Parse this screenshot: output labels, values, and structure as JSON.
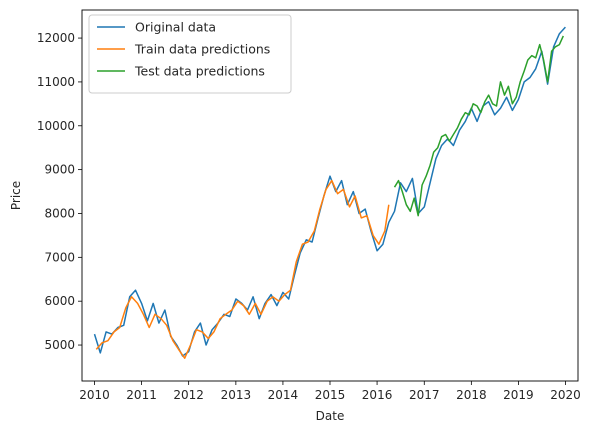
{
  "chart_data": {
    "type": "line",
    "title": "",
    "xlabel": "Date",
    "ylabel": "Price",
    "xlim": [
      "2009-09-26",
      "2020-04-07"
    ],
    "ylim": [
      4180,
      12640
    ],
    "xticks": [
      "2010",
      "2011",
      "2012",
      "2013",
      "2014",
      "2015",
      "2016",
      "2017",
      "2018",
      "2019",
      "2020"
    ],
    "yticks": [
      5000,
      6000,
      7000,
      8000,
      9000,
      10000,
      11000,
      12000
    ],
    "grid": false,
    "legend_position": "top-left",
    "series": [
      {
        "name": "Original data",
        "color": "#1f77b4",
        "points": [
          [
            "2010-01-01",
            5250
          ],
          [
            "2010-02-15",
            4820
          ],
          [
            "2010-04-01",
            5300
          ],
          [
            "2010-05-15",
            5250
          ],
          [
            "2010-07-01",
            5400
          ],
          [
            "2010-08-15",
            5450
          ],
          [
            "2010-10-01",
            6100
          ],
          [
            "2010-11-15",
            6250
          ],
          [
            "2011-01-01",
            5950
          ],
          [
            "2011-02-15",
            5550
          ],
          [
            "2011-04-01",
            5950
          ],
          [
            "2011-05-15",
            5500
          ],
          [
            "2011-07-01",
            5800
          ],
          [
            "2011-08-15",
            5200
          ],
          [
            "2011-10-01",
            5000
          ],
          [
            "2011-11-15",
            4750
          ],
          [
            "2012-01-01",
            4850
          ],
          [
            "2012-02-15",
            5300
          ],
          [
            "2012-04-01",
            5500
          ],
          [
            "2012-05-15",
            5000
          ],
          [
            "2012-07-01",
            5350
          ],
          [
            "2012-08-15",
            5500
          ],
          [
            "2012-10-01",
            5700
          ],
          [
            "2012-11-15",
            5650
          ],
          [
            "2013-01-01",
            6050
          ],
          [
            "2013-02-15",
            5950
          ],
          [
            "2013-04-01",
            5800
          ],
          [
            "2013-05-15",
            6100
          ],
          [
            "2013-07-01",
            5600
          ],
          [
            "2013-08-15",
            5950
          ],
          [
            "2013-10-01",
            6150
          ],
          [
            "2013-11-15",
            5900
          ],
          [
            "2014-01-01",
            6200
          ],
          [
            "2014-02-15",
            6050
          ],
          [
            "2014-04-01",
            6600
          ],
          [
            "2014-05-15",
            7100
          ],
          [
            "2014-07-01",
            7400
          ],
          [
            "2014-08-15",
            7350
          ],
          [
            "2014-10-01",
            7900
          ],
          [
            "2014-11-15",
            8400
          ],
          [
            "2015-01-01",
            8850
          ],
          [
            "2015-02-15",
            8500
          ],
          [
            "2015-04-01",
            8750
          ],
          [
            "2015-05-15",
            8200
          ],
          [
            "2015-07-01",
            8500
          ],
          [
            "2015-08-15",
            8000
          ],
          [
            "2015-10-01",
            8100
          ],
          [
            "2015-11-15",
            7600
          ],
          [
            "2016-01-01",
            7150
          ],
          [
            "2016-02-15",
            7300
          ],
          [
            "2016-04-01",
            7800
          ],
          [
            "2016-05-15",
            8050
          ],
          [
            "2016-07-01",
            8700
          ],
          [
            "2016-08-15",
            8500
          ],
          [
            "2016-10-01",
            8800
          ],
          [
            "2016-11-15",
            8000
          ],
          [
            "2017-01-01",
            8150
          ],
          [
            "2017-02-15",
            8700
          ],
          [
            "2017-04-01",
            9250
          ],
          [
            "2017-05-15",
            9550
          ],
          [
            "2017-07-01",
            9700
          ],
          [
            "2017-08-15",
            9550
          ],
          [
            "2017-10-01",
            9900
          ],
          [
            "2017-11-15",
            10100
          ],
          [
            "2018-01-01",
            10400
          ],
          [
            "2018-02-15",
            10100
          ],
          [
            "2018-04-01",
            10450
          ],
          [
            "2018-05-15",
            10550
          ],
          [
            "2018-07-01",
            10250
          ],
          [
            "2018-08-15",
            10400
          ],
          [
            "2018-10-01",
            10650
          ],
          [
            "2018-11-15",
            10350
          ],
          [
            "2019-01-01",
            10600
          ],
          [
            "2019-02-15",
            11000
          ],
          [
            "2019-04-01",
            11100
          ],
          [
            "2019-05-15",
            11300
          ],
          [
            "2019-07-01",
            11700
          ],
          [
            "2019-08-15",
            10950
          ],
          [
            "2019-10-01",
            11800
          ],
          [
            "2019-11-15",
            12100
          ],
          [
            "2019-12-31",
            12250
          ]
        ]
      },
      {
        "name": "Train data predictions",
        "color": "#ff7f0e",
        "points": [
          [
            "2010-01-15",
            4900
          ],
          [
            "2010-03-01",
            5050
          ],
          [
            "2010-04-15",
            5100
          ],
          [
            "2010-06-01",
            5300
          ],
          [
            "2010-07-15",
            5400
          ],
          [
            "2010-09-01",
            5850
          ],
          [
            "2010-10-15",
            6100
          ],
          [
            "2010-12-01",
            5950
          ],
          [
            "2011-01-15",
            5700
          ],
          [
            "2011-03-01",
            5400
          ],
          [
            "2011-04-15",
            5700
          ],
          [
            "2011-06-01",
            5600
          ],
          [
            "2011-07-15",
            5450
          ],
          [
            "2011-09-01",
            5100
          ],
          [
            "2011-10-15",
            4900
          ],
          [
            "2011-12-01",
            4700
          ],
          [
            "2012-01-15",
            5000
          ],
          [
            "2012-03-01",
            5350
          ],
          [
            "2012-04-15",
            5300
          ],
          [
            "2012-06-01",
            5150
          ],
          [
            "2012-07-15",
            5300
          ],
          [
            "2012-09-01",
            5600
          ],
          [
            "2012-10-15",
            5700
          ],
          [
            "2012-12-01",
            5800
          ],
          [
            "2013-01-15",
            6000
          ],
          [
            "2013-03-01",
            5900
          ],
          [
            "2013-04-15",
            5700
          ],
          [
            "2013-06-01",
            5950
          ],
          [
            "2013-07-15",
            5700
          ],
          [
            "2013-09-01",
            6000
          ],
          [
            "2013-10-15",
            6100
          ],
          [
            "2013-12-01",
            6000
          ],
          [
            "2014-01-15",
            6150
          ],
          [
            "2014-03-01",
            6250
          ],
          [
            "2014-04-15",
            6900
          ],
          [
            "2014-06-01",
            7300
          ],
          [
            "2014-07-15",
            7350
          ],
          [
            "2014-09-01",
            7600
          ],
          [
            "2014-10-15",
            8100
          ],
          [
            "2014-12-01",
            8550
          ],
          [
            "2015-01-15",
            8750
          ],
          [
            "2015-03-01",
            8450
          ],
          [
            "2015-04-15",
            8550
          ],
          [
            "2015-06-01",
            8150
          ],
          [
            "2015-07-15",
            8400
          ],
          [
            "2015-09-01",
            7900
          ],
          [
            "2015-10-15",
            7950
          ],
          [
            "2015-12-01",
            7500
          ],
          [
            "2016-01-15",
            7300
          ],
          [
            "2016-03-01",
            7600
          ],
          [
            "2016-04-01",
            8200
          ]
        ]
      },
      {
        "name": "Test data predictions",
        "color": "#2ca02c",
        "points": [
          [
            "2016-05-15",
            8600
          ],
          [
            "2016-06-15",
            8750
          ],
          [
            "2016-07-15",
            8500
          ],
          [
            "2016-08-15",
            8200
          ],
          [
            "2016-09-15",
            8050
          ],
          [
            "2016-10-15",
            8350
          ],
          [
            "2016-11-15",
            7950
          ],
          [
            "2016-12-15",
            8650
          ],
          [
            "2017-01-15",
            8850
          ],
          [
            "2017-02-15",
            9100
          ],
          [
            "2017-03-15",
            9400
          ],
          [
            "2017-04-15",
            9500
          ],
          [
            "2017-05-15",
            9750
          ],
          [
            "2017-06-15",
            9800
          ],
          [
            "2017-07-15",
            9650
          ],
          [
            "2017-08-15",
            9800
          ],
          [
            "2017-09-15",
            9950
          ],
          [
            "2017-10-15",
            10150
          ],
          [
            "2017-11-15",
            10300
          ],
          [
            "2017-12-15",
            10250
          ],
          [
            "2018-01-15",
            10500
          ],
          [
            "2018-02-15",
            10450
          ],
          [
            "2018-03-15",
            10300
          ],
          [
            "2018-04-15",
            10550
          ],
          [
            "2018-05-15",
            10700
          ],
          [
            "2018-06-15",
            10500
          ],
          [
            "2018-07-15",
            10450
          ],
          [
            "2018-08-15",
            11000
          ],
          [
            "2018-09-15",
            10700
          ],
          [
            "2018-10-15",
            10900
          ],
          [
            "2018-11-15",
            10500
          ],
          [
            "2018-12-15",
            10650
          ],
          [
            "2019-01-15",
            11000
          ],
          [
            "2019-02-15",
            11250
          ],
          [
            "2019-03-15",
            11500
          ],
          [
            "2019-04-15",
            11600
          ],
          [
            "2019-05-15",
            11550
          ],
          [
            "2019-06-15",
            11850
          ],
          [
            "2019-07-15",
            11500
          ],
          [
            "2019-08-15",
            11000
          ],
          [
            "2019-09-15",
            11700
          ],
          [
            "2019-10-15",
            11800
          ],
          [
            "2019-11-15",
            11850
          ],
          [
            "2019-12-15",
            12050
          ]
        ]
      }
    ]
  }
}
